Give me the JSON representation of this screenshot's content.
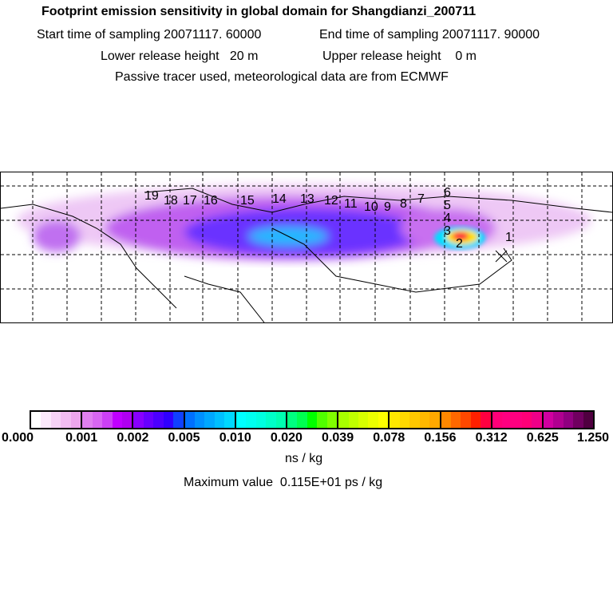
{
  "header": {
    "title": "Footprint emission sensitivity in global domain for Shangdianzi_200711",
    "start_label": "Start time of sampling 20071117. 60000",
    "end_label": "End time of sampling 20071117. 90000",
    "lower_label": "Lower release height   20 m",
    "upper_label": "Upper release height    0 m",
    "note": "Passive tracer used, meteorological data are from ECMWF"
  },
  "map": {
    "trajectory_labels": [
      "19",
      "18",
      "17",
      "16",
      "15",
      "14",
      "13",
      "12",
      "11",
      "10",
      "9",
      "8",
      "7",
      "6",
      "5",
      "4",
      "3",
      "2",
      "1"
    ]
  },
  "colorbar": {
    "ticks": [
      "0.000",
      "0.001",
      "0.002",
      "0.005",
      "0.010",
      "0.020",
      "0.039",
      "0.078",
      "0.156",
      "0.312",
      "0.625",
      "1.250"
    ],
    "colors": [
      [
        "#ffffff",
        "#fbe8fb",
        "#f6d2f6",
        "#f2bcf2",
        "#eda6ed"
      ],
      [
        "#e080f0",
        "#d866f2",
        "#cc40f5",
        "#c000ff",
        "#b000f0"
      ],
      [
        "#8800ff",
        "#6800ff",
        "#4c00ff",
        "#3000ff",
        "#1040ff"
      ],
      [
        "#0070ff",
        "#0090ff",
        "#00a8ff",
        "#00c0ff",
        "#00d8ff"
      ],
      [
        "#00ffff",
        "#00fff0",
        "#00ffe0",
        "#00ffc8",
        "#00ffb0"
      ],
      [
        "#00ff80",
        "#00ff50",
        "#00ff00",
        "#50ff00",
        "#80ff00"
      ],
      [
        "#a8ff00",
        "#c0ff00",
        "#d8ff00",
        "#ecff00",
        "#ffff00"
      ],
      [
        "#ffe800",
        "#ffd800",
        "#ffc800",
        "#ffb800",
        "#ffa800"
      ],
      [
        "#ff8800",
        "#ff6800",
        "#ff4800",
        "#ff2000",
        "#ff0040"
      ],
      [
        "#ff0078",
        "#ff0080",
        "#ff0080",
        "#ff0078",
        "#f00088"
      ],
      [
        "#d000a0",
        "#b00090",
        "#900080",
        "#700060",
        "#500040"
      ]
    ],
    "unit": "ns / kg",
    "max_value": "Maximum value  0.115E+01 ps / kg"
  }
}
